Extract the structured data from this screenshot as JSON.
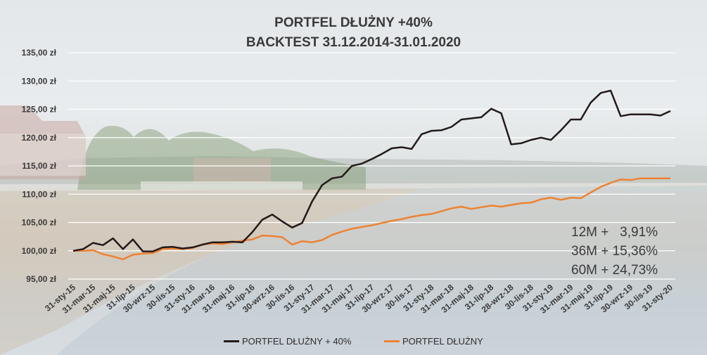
{
  "title": "PORTFEL DŁUŻNY +40%",
  "subtitle": "BACKTEST 31.12.2014-31.01.2020",
  "stats": [
    "12M +   3,91%",
    "36M + 15,36%",
    "60M + 24,73%"
  ],
  "colors": {
    "black_series": "#231a1a",
    "orange_series": "#ee8232",
    "grid": "#ffffff",
    "text": "#3a3a3a"
  },
  "chart_data": {
    "type": "line",
    "title": "PORTFEL DŁUŻNY +40%",
    "subtitle": "BACKTEST 31.12.2014-31.01.2020",
    "ylim": [
      95,
      135
    ],
    "yticks": [
      95,
      100,
      105,
      110,
      115,
      120,
      125,
      130,
      135
    ],
    "ytick_labels": [
      "95,00 zł",
      "100,00 zł",
      "105,00 zł",
      "110,00 zł",
      "115,00 zł",
      "120,00 zł",
      "125,00 zł",
      "130,00 zł",
      "135,00 zł"
    ],
    "grid": true,
    "legend_position": "bottom",
    "xtick_labels": [
      "31-sty-15",
      "31-mar-15",
      "31-maj-15",
      "31-lip-15",
      "30-wrz-15",
      "30-lis-15",
      "31-sty-16",
      "31-mar-16",
      "31-maj-16",
      "31-lip-16",
      "30-wrz-16",
      "30-lis-16",
      "31-sty-17",
      "31-mar-17",
      "31-maj-17",
      "31-lip-17",
      "30-wrz-17",
      "30-lis-17",
      "31-sty-18",
      "31-mar-18",
      "31-maj-18",
      "31-lip-18",
      "28-wrz-18",
      "30-lis-18",
      "31-sty-19",
      "31-mar-19",
      "31-maj-19",
      "31-lip-19",
      "30-wrz-19",
      "30-lis-19",
      "31-sty-20"
    ],
    "x": [
      "31-sty-15",
      "28-lut-15",
      "31-mar-15",
      "30-kwi-15",
      "31-maj-15",
      "30-cze-15",
      "31-lip-15",
      "31-sie-15",
      "30-wrz-15",
      "31-paź-15",
      "30-lis-15",
      "31-gru-15",
      "31-sty-16",
      "29-lut-16",
      "31-mar-16",
      "30-kwi-16",
      "31-maj-16",
      "30-cze-16",
      "31-lip-16",
      "31-sie-16",
      "30-wrz-16",
      "31-paź-16",
      "30-lis-16",
      "31-gru-16",
      "31-sty-17",
      "28-lut-17",
      "31-mar-17",
      "30-kwi-17",
      "31-maj-17",
      "30-cze-17",
      "31-lip-17",
      "31-sie-17",
      "30-wrz-17",
      "31-paź-17",
      "30-lis-17",
      "31-gru-17",
      "31-sty-18",
      "28-lut-18",
      "31-mar-18",
      "30-kwi-18",
      "31-maj-18",
      "30-cze-18",
      "31-lip-18",
      "31-sie-18",
      "28-wrz-18",
      "31-paź-18",
      "30-lis-18",
      "31-gru-18",
      "31-sty-19",
      "28-lut-19",
      "31-mar-19",
      "30-kwi-19",
      "31-maj-19",
      "30-cze-19",
      "31-lip-19",
      "31-sie-19",
      "30-wrz-19",
      "31-paź-19",
      "30-lis-19",
      "31-gru-19",
      "31-sty-20"
    ],
    "series": [
      {
        "name": "PORTFEL DŁUŻNY + 40%",
        "color": "#231a1a",
        "values": [
          100.0,
          100.3,
          101.4,
          101.0,
          102.2,
          100.3,
          102.0,
          99.9,
          99.9,
          100.6,
          100.7,
          100.4,
          100.6,
          101.1,
          101.5,
          101.5,
          101.6,
          101.5,
          103.3,
          105.5,
          106.4,
          105.2,
          104.1,
          104.9,
          108.7,
          111.6,
          112.8,
          113.1,
          115.0,
          115.4,
          116.2,
          117.1,
          118.1,
          118.3,
          118.0,
          120.6,
          121.2,
          121.3,
          121.9,
          123.2,
          123.4,
          123.6,
          125.1,
          124.3,
          118.8,
          119.0,
          119.6,
          120.0,
          119.6,
          121.3,
          123.2,
          123.2,
          126.2,
          127.9,
          128.3,
          123.8,
          124.1,
          124.1,
          124.1,
          123.9,
          124.7
        ]
      },
      {
        "name": "PORTFEL DŁUŻNY",
        "color": "#ee8232",
        "values": [
          100.0,
          100.0,
          100.1,
          99.4,
          99.0,
          98.5,
          99.3,
          99.5,
          99.6,
          100.3,
          100.4,
          100.3,
          100.5,
          101.1,
          101.3,
          101.2,
          101.5,
          101.8,
          102.0,
          102.7,
          102.6,
          102.4,
          101.1,
          101.7,
          101.5,
          101.9,
          102.8,
          103.4,
          103.9,
          104.2,
          104.5,
          104.9,
          105.3,
          105.6,
          106.0,
          106.3,
          106.5,
          107.0,
          107.5,
          107.8,
          107.4,
          107.7,
          108.0,
          107.8,
          108.1,
          108.4,
          108.5,
          109.1,
          109.4,
          109.0,
          109.4,
          109.3,
          110.3,
          111.3,
          112.0,
          112.6,
          112.5,
          112.8,
          112.8,
          112.8,
          112.8
        ]
      }
    ]
  }
}
